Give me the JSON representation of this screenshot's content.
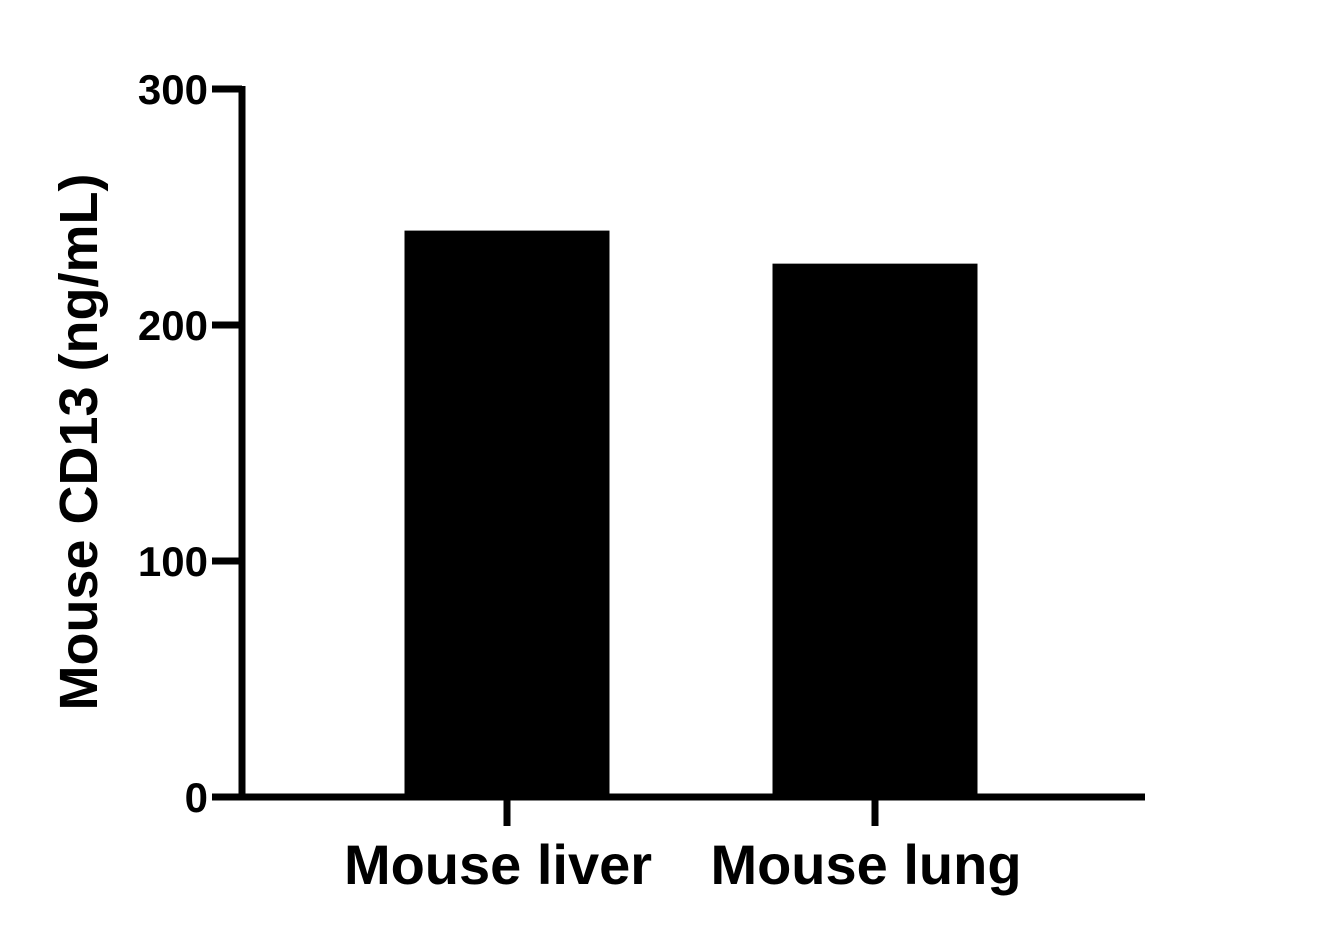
{
  "chart_data": {
    "type": "bar",
    "title": "",
    "xlabel": "",
    "ylabel": "Mouse CD13 (ng/mL)",
    "categories": [
      "Mouse liver",
      "Mouse lung"
    ],
    "values": [
      240,
      226
    ],
    "ylim": [
      0,
      300
    ],
    "yticks": [
      0,
      100,
      200,
      300
    ],
    "grid": false,
    "legend": "none",
    "bar_color": "#000000",
    "axis_color": "#000000"
  }
}
